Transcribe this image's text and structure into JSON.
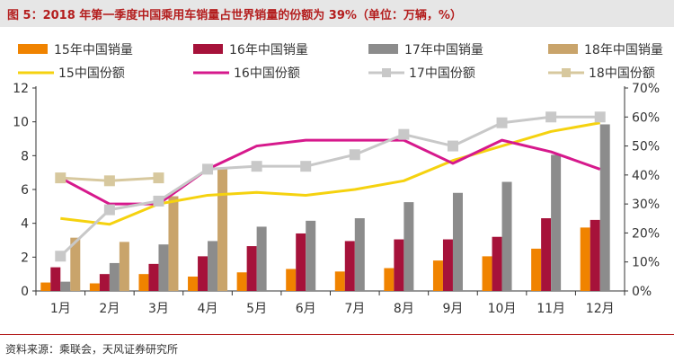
{
  "title": "图 5：2018 年第一季度中国乘用车销量占世界销量的份额为 39%（单位：万辆，%）",
  "source": "资料来源：乘联会，天风证券研究所",
  "chart_data": {
    "type": "bar",
    "title": "2018 年第一季度中国乘用车销量占世界销量的份额为 39%",
    "xlabel": "",
    "ylabel": "万辆",
    "y2label": "%",
    "categories": [
      "1月",
      "2月",
      "3月",
      "4月",
      "5月",
      "6月",
      "7月",
      "8月",
      "9月",
      "10月",
      "11月",
      "12月"
    ],
    "ylim": [
      0,
      12
    ],
    "yticks": [
      "0",
      "2",
      "4",
      "6",
      "8",
      "10",
      "12"
    ],
    "y2lim": [
      0,
      70
    ],
    "y2ticks": [
      "0%",
      "10%",
      "20%",
      "30%",
      "40%",
      "50%",
      "60%",
      "70%"
    ],
    "legend_position": "top",
    "bar_series": [
      {
        "name": "15年中国销量",
        "color": "#f08300",
        "values": [
          0.5,
          0.45,
          1.0,
          0.85,
          1.1,
          1.3,
          1.15,
          1.35,
          1.8,
          2.05,
          2.5,
          3.75
        ]
      },
      {
        "name": "16年中国销量",
        "color": "#a6123a",
        "values": [
          1.4,
          1.0,
          1.6,
          2.05,
          2.65,
          3.4,
          2.95,
          3.05,
          3.05,
          3.2,
          4.3,
          4.2
        ]
      },
      {
        "name": "17年中国销量",
        "color": "#8c8c8c",
        "values": [
          0.55,
          1.65,
          2.75,
          2.95,
          3.8,
          4.15,
          4.3,
          5.25,
          5.8,
          6.45,
          8.05,
          9.85
        ]
      },
      {
        "name": "18年中国销量",
        "color": "#c9a46b",
        "values": [
          3.15,
          2.9,
          5.6,
          7.3,
          null,
          null,
          null,
          null,
          null,
          null,
          null,
          null
        ]
      }
    ],
    "line_series": [
      {
        "name": "15中国份额",
        "color": "#f5d20f",
        "marker": "none",
        "values": [
          25,
          23,
          30,
          33,
          34,
          33,
          35,
          38,
          45,
          50,
          55,
          58
        ]
      },
      {
        "name": "16中国份额",
        "color": "#d6198c",
        "marker": "none",
        "values": [
          39,
          30,
          30,
          42,
          50,
          52,
          52,
          52,
          44,
          52,
          48,
          42
        ]
      },
      {
        "name": "17中国份额",
        "color": "#c8c8c8",
        "marker": "square",
        "values": [
          12,
          28,
          31,
          42,
          43,
          43,
          47,
          54,
          50,
          58,
          60,
          60
        ]
      },
      {
        "name": "18中国份额",
        "color": "#d7c89e",
        "marker": "square",
        "values": [
          39,
          38,
          39,
          null,
          null,
          null,
          null,
          null,
          null,
          null,
          null,
          null
        ]
      }
    ]
  }
}
